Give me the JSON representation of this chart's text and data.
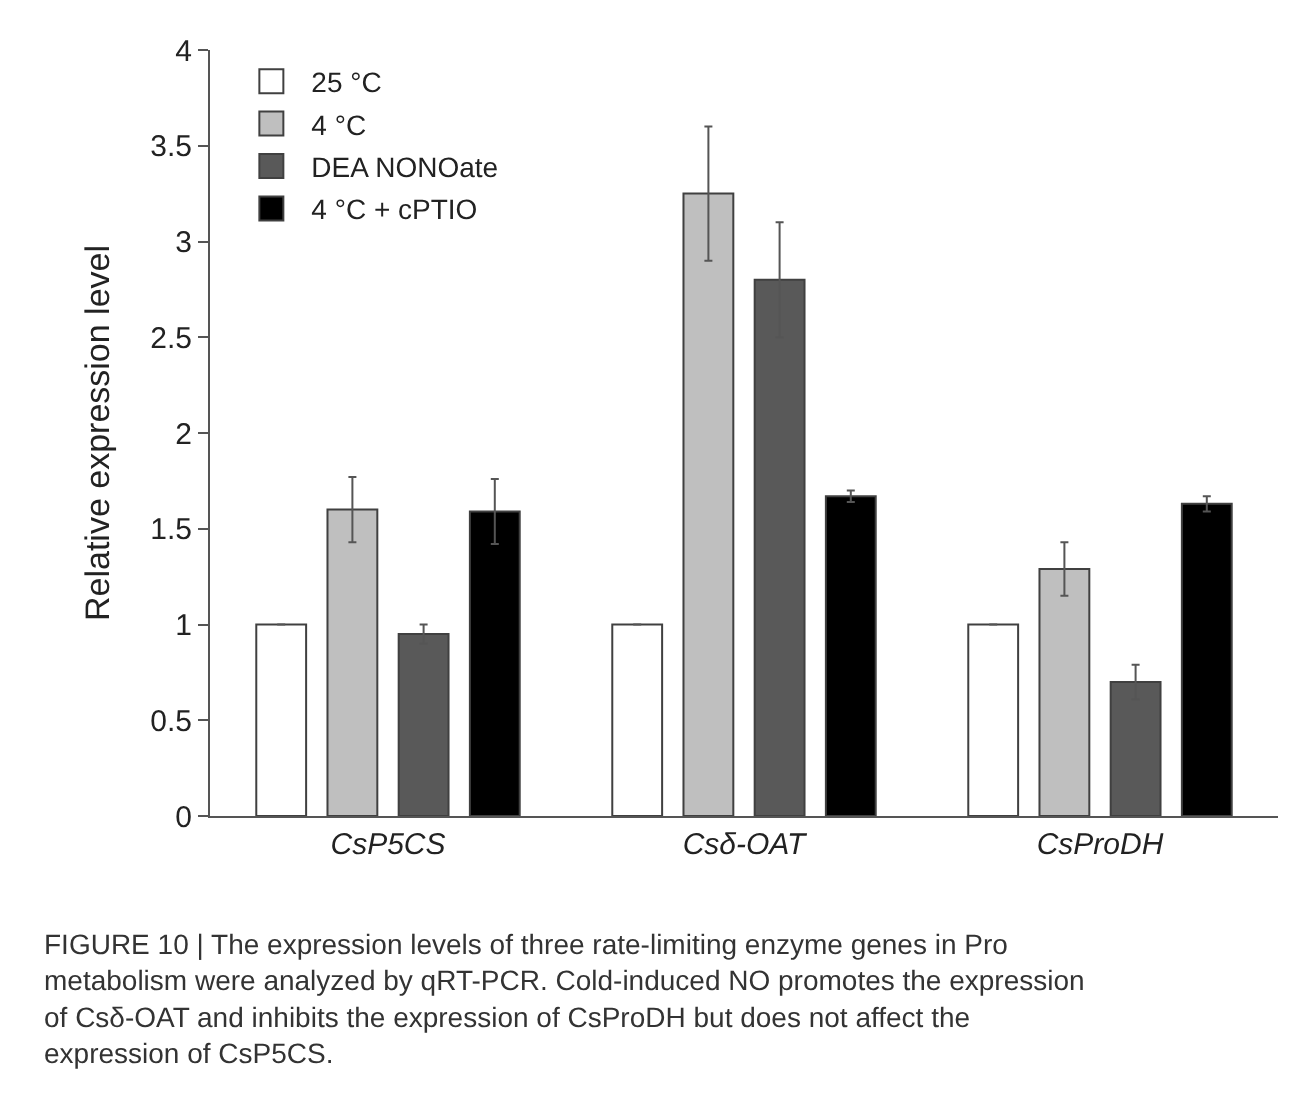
{
  "chart_data": {
    "type": "bar",
    "ylabel": "Relative expression level",
    "categories": [
      "CsP5CS",
      "Csδ-OAT",
      "CsProDH"
    ],
    "series": [
      {
        "name": "25 °C",
        "color": "#ffffff",
        "values": [
          1,
          1,
          1
        ],
        "errors": [
          null,
          null,
          null
        ]
      },
      {
        "name": "4 °C",
        "color": "#bfbfbf",
        "values": [
          1.6,
          3.25,
          1.29
        ],
        "errors": [
          0.17,
          0.35,
          0.14
        ]
      },
      {
        "name": "DEA NONOate",
        "color": "#595959",
        "values": [
          0.95,
          2.8,
          0.7
        ],
        "errors": [
          0.05,
          0.3,
          0.09
        ]
      },
      {
        "name": "4 °C + cPTIO",
        "color": "#000000",
        "values": [
          1.59,
          1.67,
          1.63
        ],
        "errors": [
          0.17,
          0.03,
          0.04
        ]
      }
    ],
    "ylim": [
      0,
      4
    ],
    "yticks": [
      0,
      0.5,
      1,
      1.5,
      2,
      2.5,
      3,
      3.5,
      4
    ],
    "grid": false,
    "legend": "top left",
    "annotations": [
      "FIGURE 10 | The expression levels of three rate-limiting enzyme genes in Pro metabolism were analyzed by qRT-PCR. Cold-induced NO promotes the expression of Csδ-OAT and inhibits the expression of CsProDH but does not affect the expression of CsP5CS."
    ]
  }
}
